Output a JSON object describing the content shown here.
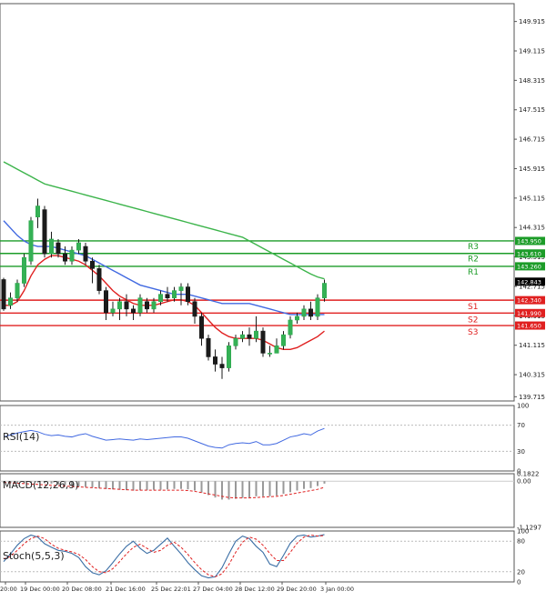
{
  "chart_data": [
    {
      "type": "candlestick",
      "panel": "price",
      "ylim": [
        139.6,
        150.4
      ],
      "price_ticks": [
        "149.915",
        "149.115",
        "148.315",
        "147.515",
        "146.715",
        "145.915",
        "145.115",
        "144.315",
        "143.515",
        "142.715",
        "141.915",
        "141.115",
        "140.315",
        "139.715"
      ],
      "x_tick_labels": [
        "20:00",
        "19 Dec 00:00",
        "20 Dec 08:00",
        "21 Dec 16:00",
        "25 Dec 22:01",
        "27 Dec 04:00",
        "28 Dec 12:00",
        "29 Dec 20:00",
        "3 Jan 00:00"
      ],
      "current_price": "142.843",
      "candles": [
        [
          142.9,
          142.1,
          142.95,
          142.05
        ],
        [
          142.2,
          142.4,
          142.55,
          142.1
        ],
        [
          142.4,
          142.8,
          142.9,
          142.3
        ],
        [
          142.8,
          143.5,
          143.6,
          142.7
        ],
        [
          143.4,
          144.5,
          144.6,
          143.3
        ],
        [
          144.6,
          144.9,
          145.1,
          144.3
        ],
        [
          144.8,
          143.6,
          144.9,
          143.5
        ],
        [
          143.6,
          144.0,
          144.2,
          143.5
        ],
        [
          143.9,
          143.6,
          144.0,
          143.5
        ],
        [
          143.6,
          143.4,
          143.8,
          143.3
        ],
        [
          143.4,
          143.7,
          143.8,
          143.3
        ],
        [
          143.7,
          143.9,
          144.0,
          143.6
        ],
        [
          143.8,
          143.4,
          143.9,
          143.3
        ],
        [
          143.4,
          143.2,
          143.5,
          142.8
        ],
        [
          143.2,
          142.6,
          143.3,
          142.5
        ],
        [
          142.6,
          142.0,
          142.7,
          141.8
        ],
        [
          142.0,
          142.1,
          142.3,
          141.9
        ],
        [
          142.1,
          142.3,
          142.4,
          141.8
        ],
        [
          142.3,
          142.1,
          142.5,
          141.9
        ],
        [
          142.1,
          142.0,
          142.2,
          141.8
        ],
        [
          142.0,
          142.4,
          142.5,
          141.9
        ],
        [
          142.3,
          142.1,
          142.4,
          142.0
        ],
        [
          142.1,
          142.3,
          142.4,
          142.0
        ],
        [
          142.3,
          142.5,
          142.6,
          142.2
        ],
        [
          142.5,
          142.4,
          142.7,
          142.3
        ],
        [
          142.4,
          142.6,
          142.7,
          142.3
        ],
        [
          142.6,
          142.7,
          142.8,
          142.2
        ],
        [
          142.7,
          142.3,
          142.8,
          142.2
        ],
        [
          142.3,
          141.9,
          142.4,
          141.7
        ],
        [
          141.9,
          141.3,
          142.0,
          141.1
        ],
        [
          141.3,
          140.8,
          141.4,
          140.7
        ],
        [
          140.8,
          140.6,
          141.0,
          140.4
        ],
        [
          140.6,
          140.5,
          140.8,
          140.2
        ],
        [
          140.5,
          141.1,
          141.2,
          140.4
        ],
        [
          141.1,
          141.3,
          141.4,
          141.0
        ],
        [
          141.3,
          141.4,
          141.5,
          141.2
        ],
        [
          141.4,
          141.3,
          141.6,
          141.1
        ],
        [
          141.3,
          141.5,
          141.9,
          141.2
        ],
        [
          141.5,
          140.9,
          141.6,
          140.8
        ],
        [
          140.9,
          140.9,
          141.1,
          140.8
        ],
        [
          140.9,
          141.1,
          141.3,
          140.9
        ],
        [
          141.1,
          141.4,
          141.5,
          141.0
        ],
        [
          141.4,
          141.8,
          141.9,
          141.3
        ],
        [
          141.8,
          141.9,
          142.0,
          141.7
        ],
        [
          141.9,
          142.1,
          142.2,
          141.8
        ],
        [
          142.1,
          141.9,
          142.3,
          141.8
        ],
        [
          141.9,
          142.4,
          142.5,
          141.8
        ],
        [
          142.4,
          142.8,
          142.9,
          142.3
        ]
      ],
      "moving_averages": [
        {
          "color": "#3cb44b",
          "values": [
            146.1,
            146.0,
            145.9,
            145.8,
            145.7,
            145.6,
            145.5,
            145.45,
            145.4,
            145.35,
            145.3,
            145.25,
            145.2,
            145.15,
            145.1,
            145.05,
            145.0,
            144.95,
            144.9,
            144.85,
            144.8,
            144.75,
            144.7,
            144.65,
            144.6,
            144.55,
            144.5,
            144.45,
            144.4,
            144.35,
            144.3,
            144.25,
            144.2,
            144.15,
            144.1,
            144.05,
            143.95,
            143.85,
            143.75,
            143.65,
            143.55,
            143.45,
            143.35,
            143.25,
            143.15,
            143.05,
            142.97,
            142.92
          ]
        },
        {
          "color": "#4169e1",
          "values": [
            144.5,
            144.3,
            144.1,
            143.95,
            143.85,
            143.8,
            143.8,
            143.8,
            143.75,
            143.7,
            143.65,
            143.6,
            143.55,
            143.45,
            143.35,
            143.25,
            143.15,
            143.05,
            142.95,
            142.85,
            142.75,
            142.7,
            142.65,
            142.6,
            142.55,
            142.5,
            142.5,
            142.5,
            142.45,
            142.4,
            142.35,
            142.3,
            142.25,
            142.25,
            142.25,
            142.25,
            142.25,
            142.2,
            142.15,
            142.1,
            142.05,
            142.0,
            141.95,
            141.95,
            141.95,
            141.95,
            141.95,
            141.95
          ]
        },
        {
          "color": "#e02020",
          "values": [
            142.2,
            142.2,
            142.3,
            142.6,
            143.0,
            143.3,
            143.45,
            143.55,
            143.55,
            143.5,
            143.45,
            143.4,
            143.3,
            143.15,
            143.0,
            142.8,
            142.6,
            142.45,
            142.35,
            142.25,
            142.2,
            142.2,
            142.2,
            142.25,
            142.3,
            142.35,
            142.35,
            142.3,
            142.2,
            142.0,
            141.8,
            141.6,
            141.45,
            141.35,
            141.3,
            141.3,
            141.3,
            141.3,
            141.25,
            141.15,
            141.05,
            141.0,
            141.0,
            141.05,
            141.15,
            141.25,
            141.35,
            141.5
          ]
        }
      ],
      "levels": [
        {
          "name": "R3",
          "value": 143.95,
          "label": "143.950",
          "color": "#1c9c28"
        },
        {
          "name": "R2",
          "value": 143.61,
          "label": "143.610",
          "color": "#1c9c28"
        },
        {
          "name": "R1",
          "value": 143.26,
          "label": "143.260",
          "color": "#1c9c28"
        },
        {
          "name": "S1",
          "value": 142.34,
          "label": "142.340",
          "color": "#e02020"
        },
        {
          "name": "S2",
          "value": 141.99,
          "label": "141.990",
          "color": "#e02020"
        },
        {
          "name": "S3",
          "value": 141.65,
          "label": "141.650",
          "color": "#e02020"
        }
      ]
    },
    {
      "type": "line",
      "panel": "rsi",
      "title": "RSI(14)",
      "ylim": [
        0,
        100
      ],
      "ticks": [
        "100",
        "70",
        "30",
        "0"
      ],
      "levels": [
        70,
        30
      ],
      "series": [
        {
          "color": "#4169e1",
          "values": [
            52,
            55,
            58,
            60,
            62,
            60,
            56,
            54,
            55,
            53,
            52,
            55,
            57,
            53,
            50,
            47,
            48,
            49,
            48,
            47,
            49,
            48,
            49,
            50,
            51,
            52,
            52,
            50,
            46,
            42,
            38,
            36,
            35,
            40,
            42,
            43,
            42,
            45,
            40,
            40,
            42,
            47,
            52,
            54,
            57,
            55,
            61,
            65
          ]
        }
      ]
    },
    {
      "type": "histogram",
      "panel": "macd",
      "title": "MACD(12,26,9)",
      "ylim": [
        -1.1297,
        0.1822
      ],
      "ticks": [
        "0.1822",
        "0.00",
        "-1.1297"
      ],
      "series": [
        {
          "name": "histogram",
          "color": "#999999",
          "values": [
            -0.05,
            -0.05,
            -0.06,
            -0.05,
            -0.04,
            -0.03,
            -0.05,
            -0.06,
            -0.08,
            -0.1,
            -0.12,
            -0.13,
            -0.14,
            -0.15,
            -0.17,
            -0.19,
            -0.2,
            -0.21,
            -0.22,
            -0.23,
            -0.22,
            -0.22,
            -0.21,
            -0.21,
            -0.2,
            -0.19,
            -0.19,
            -0.2,
            -0.23,
            -0.28,
            -0.34,
            -0.4,
            -0.45,
            -0.45,
            -0.43,
            -0.41,
            -0.4,
            -0.37,
            -0.37,
            -0.37,
            -0.35,
            -0.31,
            -0.27,
            -0.23,
            -0.19,
            -0.17,
            -0.12,
            -0.06
          ]
        },
        {
          "name": "signal",
          "color": "#e02020",
          "values": [
            -0.03,
            -0.04,
            -0.05,
            -0.06,
            -0.07,
            -0.08,
            -0.09,
            -0.1,
            -0.11,
            -0.12,
            -0.13,
            -0.14,
            -0.15,
            -0.16,
            -0.17,
            -0.18,
            -0.19,
            -0.2,
            -0.21,
            -0.22,
            -0.22,
            -0.22,
            -0.22,
            -0.22,
            -0.22,
            -0.22,
            -0.22,
            -0.23,
            -0.25,
            -0.28,
            -0.31,
            -0.34,
            -0.37,
            -0.4,
            -0.41,
            -0.41,
            -0.41,
            -0.4,
            -0.39,
            -0.38,
            -0.37,
            -0.35,
            -0.32,
            -0.29,
            -0.26,
            -0.23,
            -0.2,
            -0.15
          ]
        }
      ]
    },
    {
      "type": "line",
      "panel": "stoch",
      "title": "Stoch(5,5,3)",
      "ylim": [
        0,
        100
      ],
      "ticks": [
        "100",
        "80",
        "20",
        "0"
      ],
      "levels": [
        80,
        20
      ],
      "series": [
        {
          "color": "#3a6ea5",
          "values": [
            40,
            55,
            72,
            85,
            92,
            88,
            75,
            68,
            62,
            60,
            56,
            48,
            30,
            18,
            14,
            22,
            38,
            55,
            70,
            80,
            66,
            56,
            62,
            74,
            86,
            70,
            55,
            38,
            24,
            12,
            8,
            10,
            28,
            55,
            80,
            90,
            85,
            70,
            58,
            35,
            30,
            52,
            76,
            90,
            92,
            88,
            90,
            93
          ]
        },
        {
          "color": "#e02020",
          "values": [
            45,
            50,
            62,
            75,
            85,
            90,
            85,
            74,
            66,
            62,
            59,
            54,
            44,
            30,
            20,
            18,
            26,
            40,
            55,
            68,
            74,
            66,
            58,
            62,
            72,
            78,
            68,
            54,
            38,
            24,
            14,
            10,
            16,
            34,
            58,
            78,
            88,
            84,
            72,
            56,
            42,
            42,
            58,
            76,
            88,
            92,
            90,
            91
          ]
        }
      ]
    }
  ]
}
